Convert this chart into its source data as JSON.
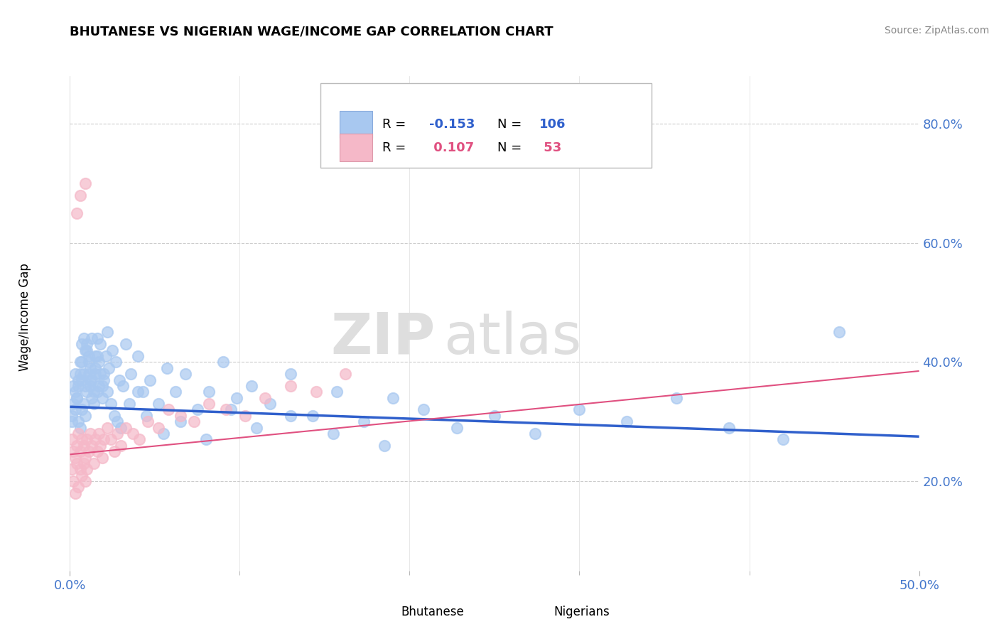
{
  "title": "BHUTANESE VS NIGERIAN WAGE/INCOME GAP CORRELATION CHART",
  "source": "Source: ZipAtlas.com",
  "ylabel": "Wage/Income Gap",
  "yticks": [
    0.2,
    0.4,
    0.6,
    0.8
  ],
  "ytick_labels": [
    "20.0%",
    "40.0%",
    "60.0%",
    "80.0%"
  ],
  "xlim": [
    0.0,
    0.5
  ],
  "ylim": [
    0.05,
    0.88
  ],
  "blue_R": -0.153,
  "blue_N": 106,
  "pink_R": 0.107,
  "pink_N": 53,
  "blue_color": "#A8C8F0",
  "pink_color": "#F5B8C8",
  "blue_line_color": "#3060CC",
  "pink_line_color": "#E05080",
  "legend_label_blue": "Bhutanese",
  "legend_label_pink": "Nigerians",
  "blue_scatter_x": [
    0.001,
    0.002,
    0.003,
    0.003,
    0.004,
    0.005,
    0.005,
    0.006,
    0.006,
    0.007,
    0.007,
    0.007,
    0.008,
    0.008,
    0.009,
    0.009,
    0.01,
    0.01,
    0.011,
    0.011,
    0.012,
    0.012,
    0.013,
    0.013,
    0.014,
    0.015,
    0.015,
    0.016,
    0.016,
    0.017,
    0.018,
    0.019,
    0.02,
    0.021,
    0.022,
    0.023,
    0.025,
    0.027,
    0.029,
    0.031,
    0.033,
    0.036,
    0.04,
    0.043,
    0.047,
    0.052,
    0.057,
    0.062,
    0.068,
    0.075,
    0.082,
    0.09,
    0.098,
    0.107,
    0.118,
    0.13,
    0.143,
    0.157,
    0.173,
    0.19,
    0.208,
    0.228,
    0.25,
    0.274,
    0.3,
    0.328,
    0.357,
    0.388,
    0.42,
    0.453,
    0.001,
    0.002,
    0.003,
    0.004,
    0.005,
    0.006,
    0.007,
    0.008,
    0.009,
    0.01,
    0.011,
    0.012,
    0.013,
    0.014,
    0.015,
    0.016,
    0.017,
    0.018,
    0.019,
    0.02,
    0.022,
    0.024,
    0.026,
    0.028,
    0.03,
    0.035,
    0.04,
    0.045,
    0.055,
    0.065,
    0.08,
    0.095,
    0.11,
    0.13,
    0.155,
    0.185
  ],
  "blue_scatter_y": [
    0.31,
    0.33,
    0.35,
    0.32,
    0.34,
    0.3,
    0.36,
    0.29,
    0.38,
    0.32,
    0.37,
    0.4,
    0.33,
    0.44,
    0.31,
    0.42,
    0.35,
    0.43,
    0.38,
    0.41,
    0.36,
    0.39,
    0.34,
    0.37,
    0.33,
    0.38,
    0.41,
    0.35,
    0.44,
    0.4,
    0.43,
    0.36,
    0.38,
    0.41,
    0.45,
    0.39,
    0.42,
    0.4,
    0.37,
    0.36,
    0.43,
    0.38,
    0.41,
    0.35,
    0.37,
    0.33,
    0.39,
    0.35,
    0.38,
    0.32,
    0.35,
    0.4,
    0.34,
    0.36,
    0.33,
    0.38,
    0.31,
    0.35,
    0.3,
    0.34,
    0.32,
    0.29,
    0.31,
    0.28,
    0.32,
    0.3,
    0.34,
    0.29,
    0.27,
    0.45,
    0.3,
    0.36,
    0.38,
    0.34,
    0.37,
    0.4,
    0.43,
    0.38,
    0.36,
    0.42,
    0.4,
    0.37,
    0.44,
    0.35,
    0.39,
    0.41,
    0.36,
    0.38,
    0.34,
    0.37,
    0.35,
    0.33,
    0.31,
    0.3,
    0.29,
    0.33,
    0.35,
    0.31,
    0.28,
    0.3,
    0.27,
    0.32,
    0.29,
    0.31,
    0.28,
    0.26
  ],
  "pink_scatter_x": [
    0.001,
    0.001,
    0.002,
    0.002,
    0.003,
    0.003,
    0.004,
    0.004,
    0.005,
    0.005,
    0.006,
    0.006,
    0.007,
    0.007,
    0.008,
    0.008,
    0.009,
    0.009,
    0.01,
    0.01,
    0.011,
    0.012,
    0.013,
    0.014,
    0.015,
    0.016,
    0.017,
    0.018,
    0.019,
    0.02,
    0.022,
    0.024,
    0.026,
    0.028,
    0.03,
    0.033,
    0.037,
    0.041,
    0.046,
    0.052,
    0.058,
    0.065,
    0.073,
    0.082,
    0.092,
    0.103,
    0.115,
    0.13,
    0.145,
    0.162,
    0.009,
    0.004,
    0.006
  ],
  "pink_scatter_y": [
    0.27,
    0.22,
    0.25,
    0.2,
    0.18,
    0.24,
    0.26,
    0.23,
    0.19,
    0.28,
    0.22,
    0.25,
    0.21,
    0.27,
    0.23,
    0.26,
    0.2,
    0.24,
    0.22,
    0.27,
    0.25,
    0.28,
    0.26,
    0.23,
    0.27,
    0.25,
    0.28,
    0.26,
    0.24,
    0.27,
    0.29,
    0.27,
    0.25,
    0.28,
    0.26,
    0.29,
    0.28,
    0.27,
    0.3,
    0.29,
    0.32,
    0.31,
    0.3,
    0.33,
    0.32,
    0.31,
    0.34,
    0.36,
    0.35,
    0.38,
    0.7,
    0.65,
    0.68
  ],
  "background_color": "#FFFFFF",
  "grid_color": "#CCCCCC",
  "watermark_zip": "ZIP",
  "watermark_atlas": "atlas",
  "watermark_color": "#DEDEDE"
}
